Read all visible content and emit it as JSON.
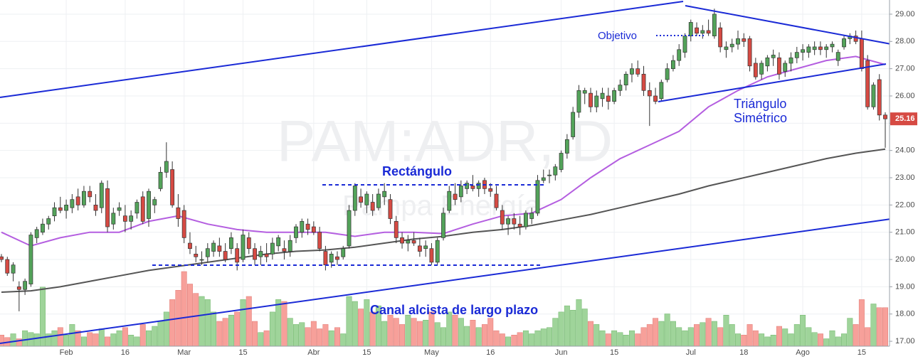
{
  "chart_data": {
    "type": "candlestick",
    "watermark": "PAM:ADR, D",
    "watermark_sub": "Pampa Energía",
    "ylim": [
      16.35,
      29.52
    ],
    "yticks": [
      {
        "value": 17,
        "label": "17.00"
      },
      {
        "value": 18,
        "label": "18.00"
      },
      {
        "value": 19,
        "label": "19.00"
      },
      {
        "value": 20,
        "label": "20.00"
      },
      {
        "value": 21,
        "label": "21.00"
      },
      {
        "value": 22,
        "label": "22.00"
      },
      {
        "value": 23,
        "label": "23.00"
      },
      {
        "value": 24,
        "label": "24.00"
      },
      {
        "value": 25,
        "label": "25.00"
      },
      {
        "value": 26,
        "label": "26.00"
      },
      {
        "value": 27,
        "label": "27.00"
      },
      {
        "value": 28,
        "label": "28.00"
      },
      {
        "value": 29,
        "label": "29.00"
      }
    ],
    "grid": true,
    "up_color": "#53a35a",
    "down_color": "#d64a43",
    "volume_up_color": "#9fd49a",
    "volume_down_color": "#f7a09a",
    "categories": [
      null,
      null,
      null,
      null,
      null,
      null,
      null,
      null,
      null,
      null,
      null,
      "Feb",
      null,
      null,
      null,
      null,
      null,
      null,
      null,
      null,
      null,
      "16",
      null,
      null,
      null,
      null,
      null,
      null,
      null,
      null,
      null,
      "Mar",
      null,
      null,
      null,
      null,
      null,
      null,
      null,
      null,
      null,
      "15",
      null,
      null,
      null,
      null,
      null,
      null,
      null,
      null,
      null,
      null,
      null,
      "Abr",
      null,
      null,
      null,
      null,
      null,
      null,
      null,
      null,
      "15",
      null,
      null,
      null,
      null,
      null,
      null,
      null,
      null,
      null,
      null,
      "May",
      null,
      null,
      null,
      null,
      null,
      null,
      null,
      null,
      null,
      "16",
      null,
      null,
      null,
      null,
      null,
      null,
      null,
      null,
      null,
      null,
      null,
      "Jun",
      null,
      null,
      null,
      null,
      null,
      null,
      null,
      null,
      "15",
      null,
      null,
      null,
      null,
      null,
      null,
      null,
      null,
      null,
      null,
      null,
      null,
      "Jul",
      null,
      null,
      null,
      null,
      null,
      null,
      null,
      null,
      "18",
      null,
      null,
      null,
      null,
      null,
      null,
      null,
      null,
      null,
      "Ago",
      null,
      null,
      null,
      null,
      null,
      null,
      null,
      null,
      null,
      "15",
      null,
      null,
      null,
      null
    ],
    "ohlc": [
      [
        20.1,
        20.2,
        19.9,
        20.0
      ],
      [
        20.0,
        20.1,
        19.4,
        19.5
      ],
      [
        19.5,
        19.9,
        19.2,
        19.8
      ],
      [
        19.0,
        19.2,
        18.1,
        18.9
      ],
      [
        18.9,
        19.3,
        18.7,
        19.2
      ],
      [
        19.1,
        21.0,
        19.0,
        20.9
      ],
      [
        20.8,
        21.2,
        20.6,
        21.1
      ],
      [
        21.0,
        21.5,
        20.9,
        21.3
      ],
      [
        21.3,
        21.6,
        21.1,
        21.5
      ],
      [
        21.6,
        22.1,
        21.4,
        21.9
      ],
      [
        21.9,
        22.3,
        21.7,
        21.8
      ],
      [
        21.8,
        22.2,
        21.5,
        22.0
      ],
      [
        21.9,
        22.4,
        21.7,
        22.2
      ],
      [
        22.3,
        22.6,
        21.8,
        22.0
      ],
      [
        22.0,
        22.7,
        21.9,
        22.5
      ],
      [
        22.5,
        22.7,
        22.1,
        22.3
      ],
      [
        22.0,
        22.4,
        21.6,
        21.8
      ],
      [
        21.9,
        22.9,
        21.7,
        22.8
      ],
      [
        22.6,
        22.9,
        21.0,
        21.2
      ],
      [
        21.3,
        21.9,
        21.1,
        21.7
      ],
      [
        21.8,
        22.1,
        21.6,
        21.9
      ],
      [
        21.6,
        22.0,
        21.0,
        21.4
      ],
      [
        21.4,
        21.8,
        21.1,
        21.6
      ],
      [
        21.7,
        22.2,
        21.5,
        22.1
      ],
      [
        22.3,
        22.5,
        21.3,
        21.4
      ],
      [
        21.5,
        22.6,
        21.2,
        22.5
      ],
      [
        22.0,
        22.3,
        21.7,
        22.2
      ],
      [
        22.6,
        23.4,
        22.5,
        23.2
      ],
      [
        23.2,
        24.3,
        23.0,
        23.6
      ],
      [
        23.3,
        23.6,
        21.9,
        22.0
      ],
      [
        21.9,
        22.4,
        21.2,
        21.5
      ],
      [
        21.8,
        22.0,
        20.6,
        20.8
      ],
      [
        20.6,
        21.0,
        20.2,
        20.4
      ],
      [
        20.2,
        20.5,
        19.9,
        20.1
      ],
      [
        20.0,
        20.3,
        19.8,
        20.0
      ],
      [
        20.1,
        20.6,
        19.9,
        20.4
      ],
      [
        20.3,
        20.7,
        20.1,
        20.6
      ],
      [
        20.5,
        20.8,
        20.1,
        20.3
      ],
      [
        20.3,
        20.6,
        19.9,
        20.0
      ],
      [
        20.4,
        21.0,
        20.2,
        20.8
      ],
      [
        20.4,
        20.6,
        19.6,
        19.9
      ],
      [
        20.0,
        21.1,
        19.9,
        20.9
      ],
      [
        20.8,
        21.0,
        20.2,
        20.4
      ],
      [
        20.4,
        20.6,
        19.8,
        20.0
      ],
      [
        20.1,
        20.5,
        19.8,
        20.3
      ],
      [
        20.2,
        20.6,
        19.9,
        20.1
      ],
      [
        20.2,
        20.8,
        20.0,
        20.6
      ],
      [
        20.5,
        20.9,
        20.3,
        20.8
      ],
      [
        20.4,
        20.7,
        20.0,
        20.3
      ],
      [
        20.3,
        20.9,
        20.1,
        20.7
      ],
      [
        20.8,
        21.3,
        20.6,
        21.2
      ],
      [
        21.0,
        21.5,
        20.8,
        21.4
      ],
      [
        21.3,
        21.5,
        20.9,
        21.1
      ],
      [
        21.2,
        21.4,
        20.9,
        21.0
      ],
      [
        21.0,
        21.2,
        20.3,
        20.4
      ],
      [
        20.3,
        20.5,
        19.6,
        19.8
      ],
      [
        19.9,
        20.3,
        19.7,
        20.2
      ],
      [
        20.1,
        20.3,
        19.8,
        20.0
      ],
      [
        20.1,
        20.5,
        20.0,
        20.4
      ],
      [
        20.5,
        22.0,
        20.4,
        21.8
      ],
      [
        21.8,
        22.8,
        21.6,
        22.7
      ],
      [
        22.3,
        22.6,
        21.9,
        22.1
      ],
      [
        22.0,
        22.5,
        21.7,
        22.4
      ],
      [
        22.1,
        22.4,
        21.6,
        21.8
      ],
      [
        21.9,
        22.6,
        21.8,
        22.4
      ],
      [
        22.3,
        22.8,
        22.0,
        22.5
      ],
      [
        22.2,
        22.4,
        21.3,
        21.5
      ],
      [
        21.4,
        21.6,
        20.6,
        20.8
      ],
      [
        20.8,
        21.0,
        20.4,
        20.6
      ],
      [
        20.6,
        20.9,
        20.3,
        20.7
      ],
      [
        20.7,
        21.0,
        20.5,
        20.6
      ],
      [
        20.5,
        20.8,
        20.1,
        20.3
      ],
      [
        20.4,
        20.7,
        20.1,
        20.5
      ],
      [
        20.4,
        20.6,
        19.8,
        19.9
      ],
      [
        19.9,
        20.8,
        19.8,
        20.7
      ],
      [
        20.8,
        21.9,
        20.7,
        21.7
      ],
      [
        21.8,
        22.7,
        21.7,
        22.5
      ],
      [
        22.4,
        22.8,
        22.0,
        22.2
      ],
      [
        22.3,
        22.9,
        22.1,
        22.7
      ],
      [
        22.6,
        22.9,
        22.4,
        22.8
      ],
      [
        22.7,
        23.1,
        22.5,
        22.6
      ],
      [
        22.6,
        22.9,
        22.3,
        22.8
      ],
      [
        22.9,
        23.0,
        22.4,
        22.6
      ],
      [
        22.6,
        22.8,
        22.3,
        22.5
      ],
      [
        22.4,
        22.7,
        21.8,
        21.9
      ],
      [
        21.8,
        22.0,
        21.1,
        21.3
      ],
      [
        21.3,
        21.6,
        20.9,
        21.5
      ],
      [
        21.5,
        21.7,
        21.1,
        21.3
      ],
      [
        21.3,
        21.6,
        20.9,
        21.2
      ],
      [
        21.2,
        21.8,
        21.1,
        21.7
      ],
      [
        21.5,
        21.9,
        21.3,
        21.7
      ],
      [
        21.7,
        23.1,
        21.6,
        22.9
      ],
      [
        22.9,
        23.3,
        22.8,
        23.0
      ],
      [
        23.1,
        23.3,
        22.8,
        23.1
      ],
      [
        23.1,
        23.5,
        22.9,
        23.4
      ],
      [
        23.3,
        24.0,
        23.2,
        23.9
      ],
      [
        23.9,
        24.6,
        23.7,
        24.4
      ],
      [
        24.5,
        25.6,
        24.4,
        25.4
      ],
      [
        25.4,
        26.4,
        25.2,
        26.2
      ],
      [
        26.1,
        26.3,
        25.7,
        26.2
      ],
      [
        26.1,
        26.3,
        25.4,
        25.6
      ],
      [
        25.6,
        26.2,
        25.4,
        26.0
      ],
      [
        25.9,
        26.3,
        25.6,
        26.1
      ],
      [
        26.0,
        26.3,
        25.5,
        25.8
      ],
      [
        25.8,
        26.3,
        25.7,
        26.2
      ],
      [
        26.2,
        26.6,
        26.0,
        26.4
      ],
      [
        26.4,
        26.9,
        26.2,
        26.8
      ],
      [
        26.8,
        27.2,
        26.5,
        27.0
      ],
      [
        27.0,
        27.3,
        26.7,
        26.8
      ],
      [
        26.8,
        27.1,
        26.0,
        26.2
      ],
      [
        26.2,
        26.5,
        24.9,
        26.0
      ],
      [
        26.0,
        26.3,
        25.7,
        25.8
      ],
      [
        25.9,
        26.6,
        25.8,
        26.5
      ],
      [
        26.6,
        27.2,
        26.5,
        27.0
      ],
      [
        27.0,
        27.5,
        26.9,
        27.3
      ],
      [
        27.3,
        27.9,
        27.1,
        27.7
      ],
      [
        27.6,
        28.3,
        27.4,
        28.2
      ],
      [
        28.2,
        28.8,
        28.0,
        28.7
      ],
      [
        28.5,
        28.7,
        28.2,
        28.3
      ],
      [
        28.3,
        28.6,
        28.1,
        28.4
      ],
      [
        28.4,
        28.8,
        28.2,
        28.3
      ],
      [
        28.2,
        29.2,
        28.1,
        29.0
      ],
      [
        28.5,
        28.7,
        27.6,
        27.8
      ],
      [
        27.7,
        28.0,
        27.4,
        27.8
      ],
      [
        27.8,
        28.1,
        27.6,
        27.9
      ],
      [
        27.9,
        28.4,
        27.7,
        28.1
      ],
      [
        28.1,
        28.3,
        27.8,
        28.0
      ],
      [
        28.1,
        28.2,
        26.9,
        27.1
      ],
      [
        27.2,
        27.4,
        26.6,
        26.7
      ],
      [
        26.8,
        27.3,
        26.6,
        27.2
      ],
      [
        27.1,
        27.5,
        26.9,
        27.4
      ],
      [
        27.4,
        27.7,
        27.1,
        27.5
      ],
      [
        27.4,
        27.6,
        26.6,
        26.8
      ],
      [
        26.9,
        27.3,
        26.7,
        27.2
      ],
      [
        27.2,
        27.6,
        26.9,
        27.4
      ],
      [
        27.4,
        27.8,
        27.2,
        27.6
      ],
      [
        27.6,
        27.9,
        27.3,
        27.7
      ],
      [
        27.6,
        27.9,
        27.4,
        27.8
      ],
      [
        27.7,
        28.0,
        27.5,
        27.8
      ],
      [
        27.8,
        28.0,
        27.5,
        27.7
      ],
      [
        27.7,
        27.9,
        27.4,
        27.8
      ],
      [
        27.8,
        28.0,
        27.6,
        27.9
      ],
      [
        27.3,
        27.7,
        27.1,
        27.6
      ],
      [
        27.8,
        28.2,
        27.7,
        28.1
      ],
      [
        28.1,
        28.3,
        27.9,
        28.2
      ],
      [
        28.2,
        28.4,
        27.9,
        28.0
      ],
      [
        28.1,
        28.4,
        26.9,
        27.0
      ],
      [
        27.3,
        27.5,
        25.5,
        25.6
      ],
      [
        25.6,
        26.5,
        25.5,
        26.4
      ],
      [
        26.6,
        26.8,
        25.1,
        25.3
      ],
      [
        25.3,
        25.4,
        24.1,
        25.16
      ]
    ],
    "volume": [
      18,
      14,
      20,
      12,
      25,
      22,
      20,
      95,
      20,
      25,
      30,
      18,
      35,
      25,
      15,
      22,
      20,
      28,
      15,
      20,
      25,
      30,
      18,
      15,
      35,
      25,
      32,
      40,
      55,
      75,
      90,
      120,
      100,
      85,
      80,
      75,
      55,
      40,
      45,
      50,
      55,
      75,
      80,
      40,
      22,
      25,
      55,
      75,
      72,
      45,
      35,
      38,
      30,
      40,
      28,
      35,
      25,
      30,
      20,
      80,
      72,
      60,
      75,
      55,
      65,
      40,
      50,
      45,
      35,
      50,
      45,
      40,
      42,
      55,
      38,
      30,
      55,
      50,
      45,
      32,
      42,
      30,
      35,
      45,
      25,
      20,
      15,
      18,
      22,
      25,
      20,
      25,
      28,
      30,
      45,
      55,
      65,
      58,
      75,
      60,
      40,
      35,
      25,
      20,
      25,
      22,
      18,
      25,
      20,
      30,
      35,
      45,
      40,
      52,
      40,
      30,
      25,
      30,
      35,
      38,
      45,
      40,
      30,
      50,
      35,
      20,
      18,
      35,
      25,
      20,
      15,
      18,
      32,
      28,
      20,
      35,
      50,
      30,
      22,
      20,
      12,
      25,
      15,
      20,
      45,
      35,
      75,
      30,
      68,
      62,
      62
    ],
    "moving_averages": [
      {
        "color": "#b45ee0",
        "x": [
          0,
          5,
          10,
          15,
          20,
          25,
          30,
          35,
          40,
          45,
          50,
          55,
          60,
          65,
          70,
          75,
          80,
          85,
          90,
          95,
          100,
          105,
          110,
          115,
          120,
          125,
          130,
          135,
          140,
          145,
          150
        ],
        "values": [
          21.0,
          20.5,
          20.8,
          21.0,
          21.0,
          21.4,
          21.6,
          21.3,
          21.1,
          21.0,
          21.0,
          21.0,
          20.85,
          21.0,
          21.0,
          20.95,
          21.3,
          21.6,
          21.7,
          22.2,
          23.0,
          23.7,
          24.2,
          24.7,
          25.6,
          26.2,
          26.7,
          27.0,
          27.3,
          27.45,
          27.15
        ]
      },
      {
        "color": "#555555",
        "x": [
          0,
          5,
          10,
          15,
          20,
          25,
          30,
          35,
          40,
          45,
          50,
          55,
          60,
          65,
          70,
          75,
          80,
          85,
          90,
          95,
          100,
          105,
          110,
          115,
          120,
          125,
          130,
          135,
          140,
          145,
          150
        ],
        "values": [
          18.8,
          18.85,
          19.0,
          19.2,
          19.4,
          19.6,
          19.75,
          19.9,
          20.05,
          20.2,
          20.3,
          20.35,
          20.45,
          20.6,
          20.75,
          20.85,
          21.0,
          21.1,
          21.25,
          21.45,
          21.65,
          21.9,
          22.15,
          22.4,
          22.7,
          22.95,
          23.2,
          23.45,
          23.7,
          23.9,
          24.05
        ]
      }
    ],
    "last_price": 25.16,
    "annotations": {
      "target": "Objetivo",
      "rectangle": "Rectángulo",
      "triangle_1": "Triángulo",
      "triangle_2": "Simétrico",
      "channel": "Canal alcista de largo plazo"
    }
  }
}
